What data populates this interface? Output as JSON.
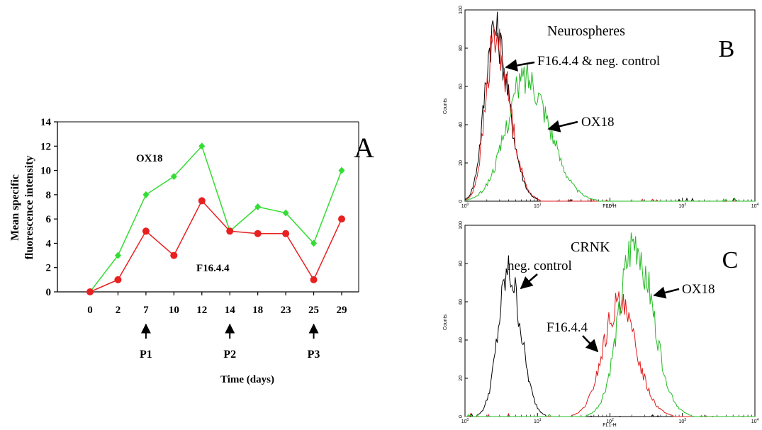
{
  "chart_data": [
    {
      "panel": "A",
      "type": "line",
      "panel_letter": "A",
      "x_categories": [
        "0",
        "2",
        "7",
        "10",
        "12",
        "14",
        "18",
        "23",
        "25",
        "29"
      ],
      "xlabel": "Time (days)",
      "ylabel_line1": "Mean specific",
      "ylabel_line2": "fluorescence intensity",
      "ylim": [
        0,
        14
      ],
      "yticks": [
        0,
        2,
        4,
        6,
        8,
        10,
        12,
        14
      ],
      "grid": false,
      "series": [
        {
          "name": "OX18",
          "color": "#33dd33",
          "marker": "diamond",
          "values": [
            0,
            3,
            8,
            9.5,
            12,
            5,
            7,
            6.5,
            4,
            10
          ]
        },
        {
          "name": "F16.4.4",
          "color": "#e82020",
          "marker": "circle",
          "values": [
            0,
            1,
            5,
            3,
            7.5,
            5,
            4.8,
            4.8,
            1,
            6
          ]
        }
      ],
      "passages": [
        {
          "label": "P1",
          "category_index": 2
        },
        {
          "label": "P2",
          "category_index": 5
        },
        {
          "label": "P3",
          "category_index": 8
        }
      ]
    },
    {
      "panel": "B",
      "type": "area",
      "panel_letter": "B",
      "title": "Neurospheres",
      "xlabel": "FL1-H",
      "ylabel": "Counts",
      "xscale": "log",
      "xlim": [
        1,
        10000
      ],
      "ylim": [
        0,
        100
      ],
      "yticks": [
        "0",
        "20",
        "40",
        "60",
        "80",
        "100"
      ],
      "xtick_exponents": [
        "0",
        "1",
        "2",
        "3",
        "4"
      ],
      "annotations": [
        "F16.4.4 & neg. control",
        "OX18"
      ],
      "series": [
        {
          "name": "neg. control",
          "color": "#000000",
          "peak_x": 2.5,
          "peak_y": 90
        },
        {
          "name": "F16.4.4",
          "color": "#e01818",
          "peak_x": 2.6,
          "peak_y": 85
        },
        {
          "name": "OX18",
          "color": "#22bb22",
          "peak_x": 7,
          "peak_y": 65
        }
      ]
    },
    {
      "panel": "C",
      "type": "area",
      "panel_letter": "C",
      "title": "CRNK",
      "xlabel": "FL1-H",
      "ylabel": "Counts",
      "xscale": "log",
      "xlim": [
        1,
        10000
      ],
      "ylim": [
        0,
        100
      ],
      "yticks": [
        "0",
        "20",
        "40",
        "60",
        "80",
        "100"
      ],
      "xtick_exponents": [
        "0",
        "1",
        "2",
        "3",
        "4"
      ],
      "annotations": [
        "neg. control",
        "F16.4.4",
        "OX18"
      ],
      "series": [
        {
          "name": "neg. control",
          "color": "#000000",
          "peak_x": 4,
          "peak_y": 75
        },
        {
          "name": "F16.4.4",
          "color": "#e01818",
          "peak_x": 130,
          "peak_y": 58
        },
        {
          "name": "OX18",
          "color": "#22bb22",
          "peak_x": 220,
          "peak_y": 90
        }
      ]
    }
  ]
}
